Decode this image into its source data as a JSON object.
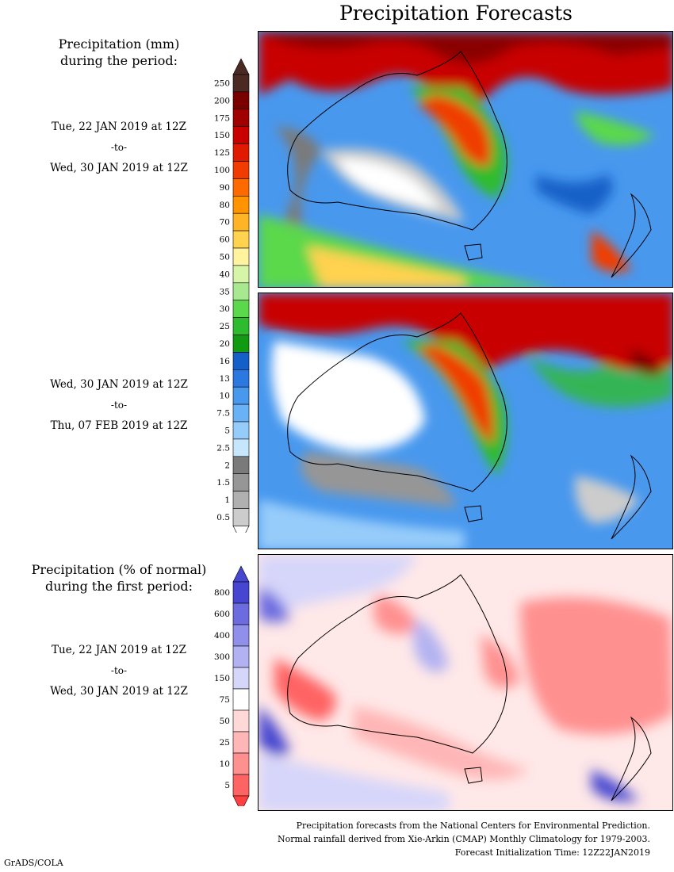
{
  "header": {
    "title": "Precipitation Forecasts"
  },
  "legend_mm": {
    "title_line1": "Precipitation (mm)",
    "title_line2": "during the period:",
    "ticks": [
      "250",
      "200",
      "175",
      "150",
      "125",
      "100",
      "90",
      "80",
      "70",
      "60",
      "50",
      "40",
      "35",
      "30",
      "25",
      "20",
      "16",
      "13",
      "10",
      "7.5",
      "5",
      "2.5",
      "2",
      "1.5",
      "1",
      "0.5"
    ],
    "colors": [
      "#4a2a22",
      "#7a0000",
      "#a10000",
      "#c80000",
      "#e01a00",
      "#f03c00",
      "#ff6a00",
      "#ff9400",
      "#ffb428",
      "#ffd250",
      "#fff3a0",
      "#d6f5a8",
      "#a8e890",
      "#5cd84c",
      "#2ebc2e",
      "#129a12",
      "#1560c8",
      "#2b78e0",
      "#4898ee",
      "#6ab2f6",
      "#96ccfa",
      "#c6e6fc",
      "#7a7a7a",
      "#969696",
      "#b0b0b0",
      "#cccccc"
    ]
  },
  "legend_pct": {
    "title_line1": "Precipitation (% of normal)",
    "title_line2": "during the first period:",
    "ticks": [
      "800",
      "600",
      "400",
      "300",
      "150",
      "75",
      "50",
      "25",
      "10",
      "5"
    ],
    "colors": [
      "#4646d0",
      "#6c6ce0",
      "#9090ea",
      "#b2b2f2",
      "#d6d6fa",
      "#ffffff",
      "#ffd8d8",
      "#ffb6b6",
      "#ff9090",
      "#ff6464"
    ]
  },
  "periods": [
    {
      "start": "Tue, 22 JAN 2019 at 12Z",
      "sep": "-to-",
      "end": "Wed, 30 JAN 2019 at 12Z"
    },
    {
      "start": "Wed, 30 JAN 2019 at 12Z",
      "sep": "-to-",
      "end": "Thu, 07 FEB 2019 at 12Z"
    },
    {
      "start": "Tue, 22 JAN 2019 at 12Z",
      "sep": "-to-",
      "end": "Wed, 30 JAN 2019 at 12Z"
    }
  ],
  "footer": {
    "line1": "Precipitation forecasts from the National Centers for Environmental Prediction.",
    "line2": "Normal rainfall derived from Xie-Arkin (CMAP) Monthly Climatology for 1979-2003.",
    "line3": "Forecast Initialization Time: 12Z22JAN2019"
  },
  "credit": "GrADS/COLA"
}
